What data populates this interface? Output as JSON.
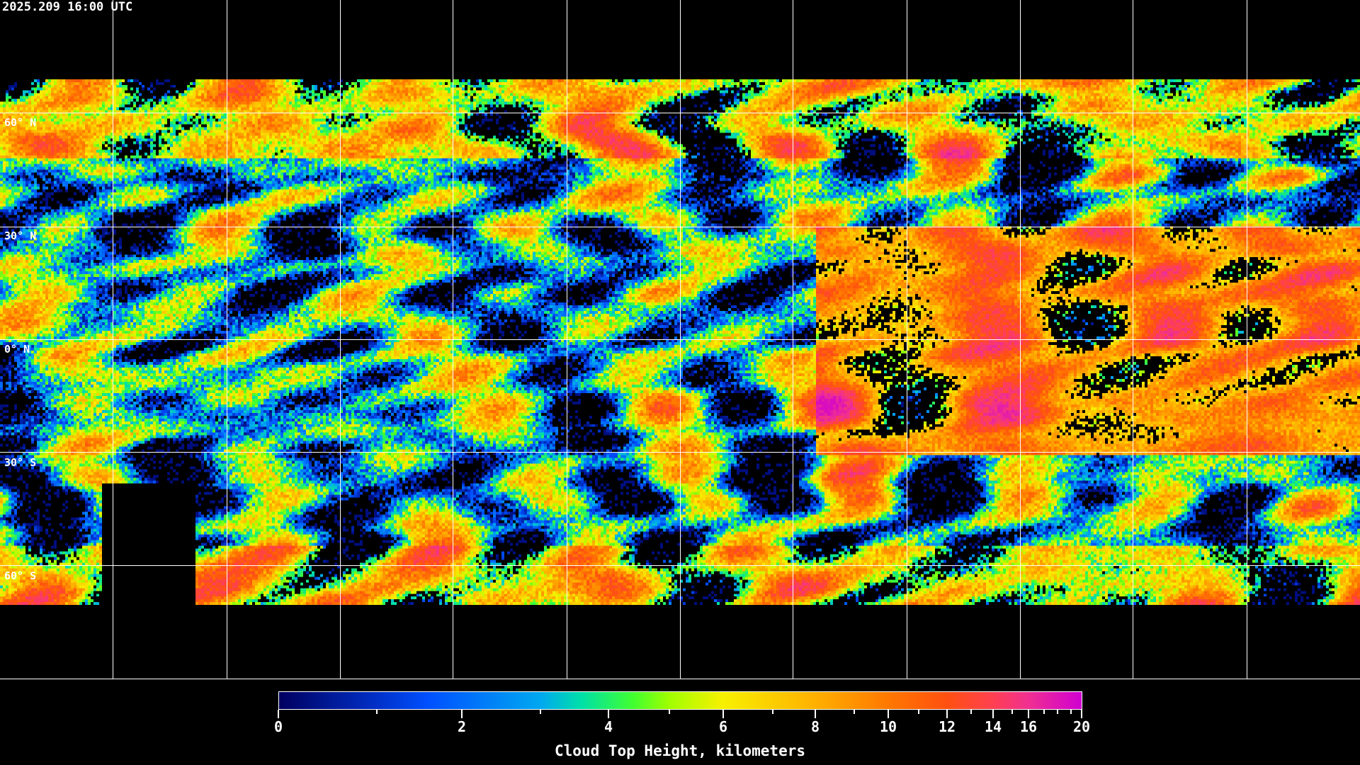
{
  "timestamp": "2025.209 16:00 UTC",
  "latitude_labels": [
    "60° N",
    "30° N",
    "0° N",
    "30° S",
    "60° S"
  ],
  "colorbar": {
    "title": "Cloud Top Height, kilometers",
    "tick_labels": [
      "0",
      "2",
      "4",
      "6",
      "8",
      "10",
      "12",
      "14",
      "16",
      "20"
    ],
    "major_ticks_km": [
      0,
      2,
      4,
      6,
      8,
      10,
      12,
      14,
      16,
      20
    ],
    "minor_ticks_km": [
      1,
      3,
      5,
      7,
      9,
      11,
      13,
      15,
      17,
      18,
      19
    ],
    "range_km": [
      0,
      20
    ],
    "colormap": [
      {
        "km": 0,
        "color": "#000060"
      },
      {
        "km": 1,
        "color": "#0030c8"
      },
      {
        "km": 1.6,
        "color": "#0050ff"
      },
      {
        "km": 3,
        "color": "#00a8f0"
      },
      {
        "km": 3.6,
        "color": "#00e0a8"
      },
      {
        "km": 4.4,
        "color": "#40ff30"
      },
      {
        "km": 5,
        "color": "#a0ff00"
      },
      {
        "km": 6,
        "color": "#f8f000"
      },
      {
        "km": 8,
        "color": "#ffb000"
      },
      {
        "km": 10,
        "color": "#ff7800"
      },
      {
        "km": 12,
        "color": "#ff5010"
      },
      {
        "km": 14,
        "color": "#ff4050"
      },
      {
        "km": 16,
        "color": "#f03090"
      },
      {
        "km": 20,
        "color": "#d000d0"
      }
    ]
  },
  "no_data_color": "#000000",
  "grid_color": "#ffffff"
}
